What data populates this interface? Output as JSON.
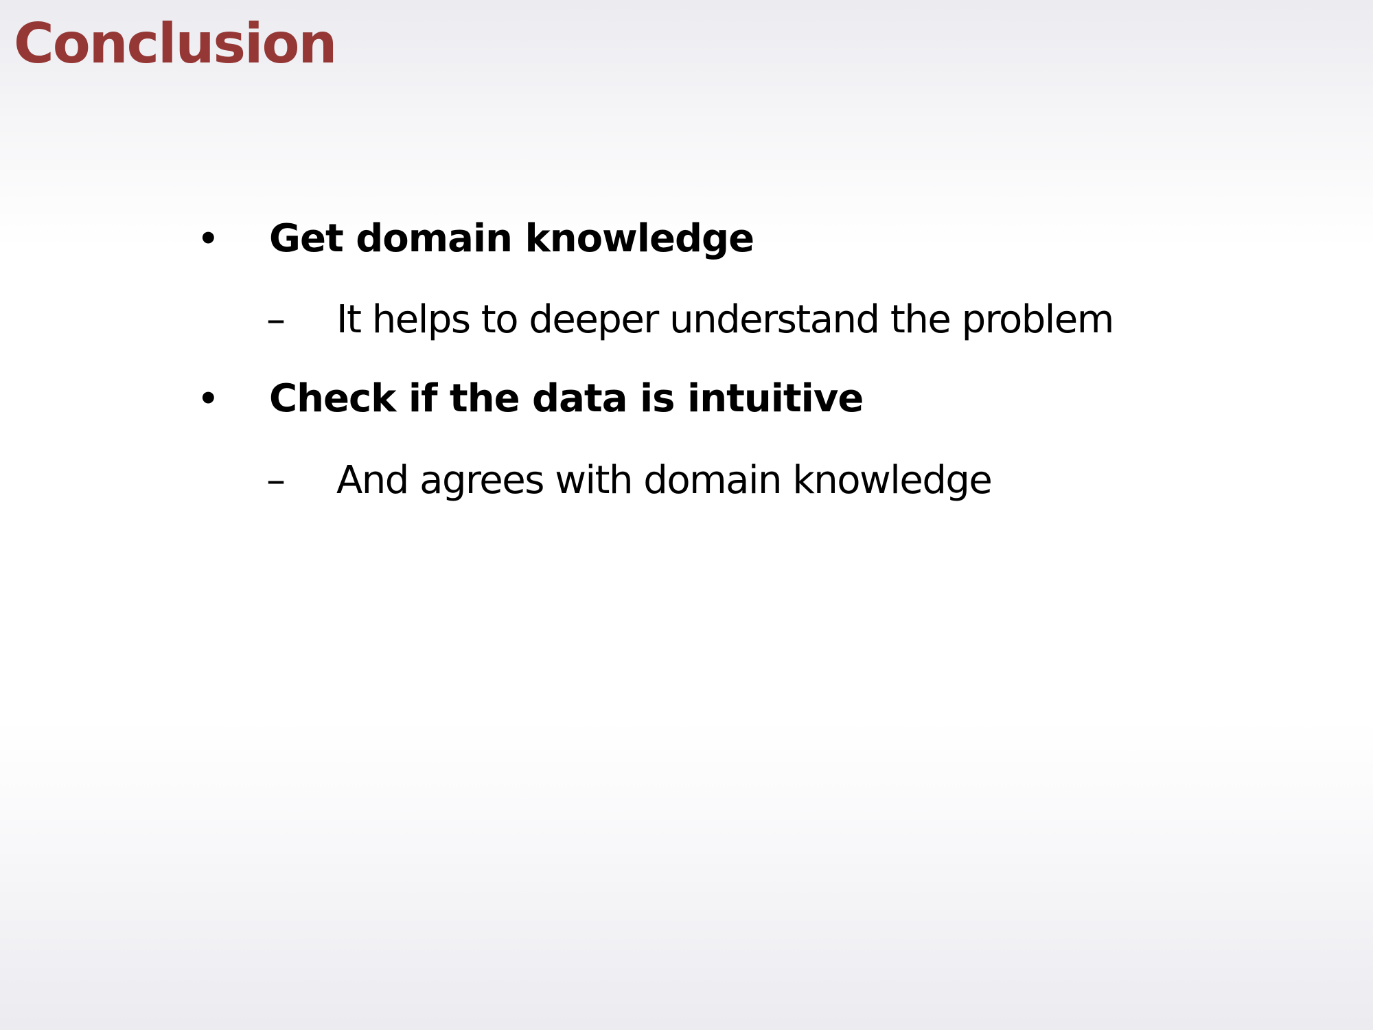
{
  "slide": {
    "title": "Conclusion",
    "bullets": [
      {
        "marker": "•",
        "text": "Get domain knowledge",
        "sub": {
          "marker": "–",
          "text": "It helps to deeper understand the problem"
        }
      },
      {
        "marker": "•",
        "text": "Check if the data is intuitive",
        "sub": {
          "marker": "–",
          "text": "And agrees with domain knowledge"
        }
      }
    ]
  },
  "colors": {
    "title": "#953735",
    "text": "#000000"
  }
}
